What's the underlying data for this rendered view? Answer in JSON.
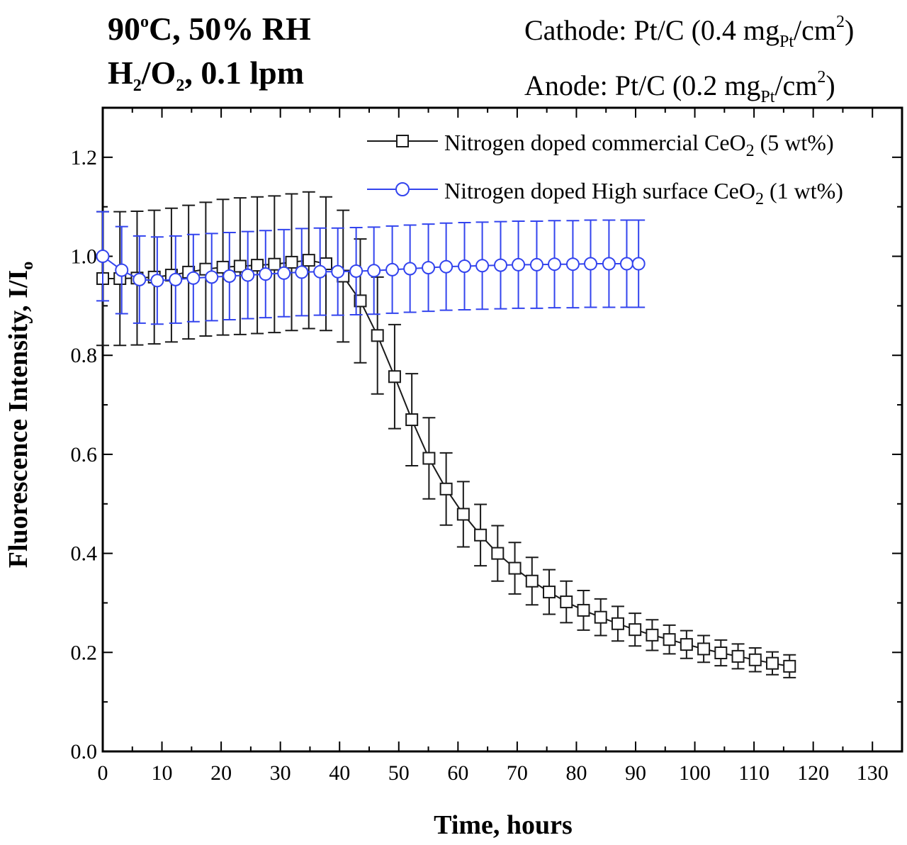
{
  "annotations": {
    "condition_line1": "90°C, 50% RH",
    "condition_line2": "H2/O2, 0.1 lpm",
    "cathode": "Cathode: Pt/C (0.4 mgPt/cm2)",
    "anode": "Anode: Pt/C (0.2 mgPt/cm2)"
  },
  "colors": {
    "series1": "#1a1a1a",
    "series2": "#3344ee",
    "frame": "#000000"
  },
  "chart_data": {
    "type": "line",
    "title": "",
    "xlabel": "Time, hours",
    "ylabel": "Fluorescence Intensity, I/Io",
    "xlim": [
      0,
      135
    ],
    "ylim": [
      0,
      1.3
    ],
    "xticks": [
      0,
      10,
      20,
      30,
      40,
      50,
      60,
      70,
      80,
      90,
      100,
      110,
      120,
      130
    ],
    "yticks": [
      0.0,
      0.2,
      0.4,
      0.6,
      0.8,
      1.0,
      1.2
    ],
    "xtick_labels": [
      "0",
      "10",
      "20",
      "30",
      "40",
      "50",
      "60",
      "70",
      "80",
      "90",
      "100",
      "110",
      "120",
      "130"
    ],
    "ytick_labels": [
      "0.0",
      "0.2",
      "0.4",
      "0.6",
      "0.8",
      "1.0",
      "1.2"
    ],
    "legend_position": "top-right",
    "series": [
      {
        "name": "Nitrogen doped commercial CeO2 (5 wt%)",
        "marker": "square",
        "x": [
          0,
          2.9,
          5.8,
          8.7,
          11.6,
          14.5,
          17.4,
          20.3,
          23.2,
          26.1,
          29.0,
          31.9,
          34.8,
          37.7,
          40.6,
          43.5,
          46.4,
          49.3,
          52.2,
          55.1,
          58.0,
          60.9,
          63.8,
          66.7,
          69.6,
          72.5,
          75.4,
          78.3,
          81.2,
          84.1,
          87.0,
          89.9,
          92.8,
          95.7,
          98.6,
          101.5,
          104.4,
          107.3,
          110.2,
          113.1,
          116.0
        ],
        "y": [
          0.955,
          0.955,
          0.956,
          0.958,
          0.962,
          0.968,
          0.974,
          0.978,
          0.98,
          0.982,
          0.984,
          0.988,
          0.992,
          0.985,
          0.96,
          0.91,
          0.84,
          0.757,
          0.67,
          0.592,
          0.53,
          0.479,
          0.437,
          0.4,
          0.37,
          0.344,
          0.322,
          0.302,
          0.285,
          0.271,
          0.258,
          0.246,
          0.235,
          0.226,
          0.216,
          0.207,
          0.199,
          0.192,
          0.185,
          0.178,
          0.172
        ],
        "error": [
          0.135,
          0.135,
          0.135,
          0.135,
          0.135,
          0.135,
          0.135,
          0.137,
          0.138,
          0.138,
          0.138,
          0.138,
          0.138,
          0.135,
          0.133,
          0.125,
          0.118,
          0.105,
          0.093,
          0.082,
          0.073,
          0.066,
          0.062,
          0.056,
          0.052,
          0.048,
          0.045,
          0.042,
          0.04,
          0.037,
          0.035,
          0.033,
          0.031,
          0.029,
          0.028,
          0.027,
          0.026,
          0.025,
          0.024,
          0.023,
          0.023
        ]
      },
      {
        "name": "Nitrogen doped High surface CeO2 (1 wt%)",
        "marker": "circle",
        "x": [
          0,
          3.2,
          6.2,
          9.2,
          12.3,
          15.3,
          18.4,
          21.4,
          24.5,
          27.5,
          30.6,
          33.6,
          36.7,
          39.7,
          42.8,
          45.8,
          48.9,
          51.9,
          55.0,
          58.0,
          61.1,
          64.1,
          67.2,
          70.2,
          73.3,
          76.3,
          79.4,
          82.4,
          85.5,
          88.5,
          90.5
        ],
        "y": [
          1.0,
          0.972,
          0.953,
          0.951,
          0.953,
          0.956,
          0.958,
          0.96,
          0.962,
          0.964,
          0.966,
          0.968,
          0.969,
          0.969,
          0.97,
          0.971,
          0.973,
          0.975,
          0.977,
          0.979,
          0.98,
          0.981,
          0.982,
          0.983,
          0.983,
          0.984,
          0.984,
          0.985,
          0.985,
          0.985,
          0.985
        ],
        "error": [
          0.09,
          0.088,
          0.088,
          0.088,
          0.088,
          0.088,
          0.088,
          0.088,
          0.088,
          0.088,
          0.088,
          0.088,
          0.088,
          0.088,
          0.088,
          0.088,
          0.088,
          0.088,
          0.088,
          0.088,
          0.088,
          0.088,
          0.088,
          0.088,
          0.088,
          0.088,
          0.088,
          0.088,
          0.088,
          0.088,
          0.088
        ]
      }
    ]
  }
}
